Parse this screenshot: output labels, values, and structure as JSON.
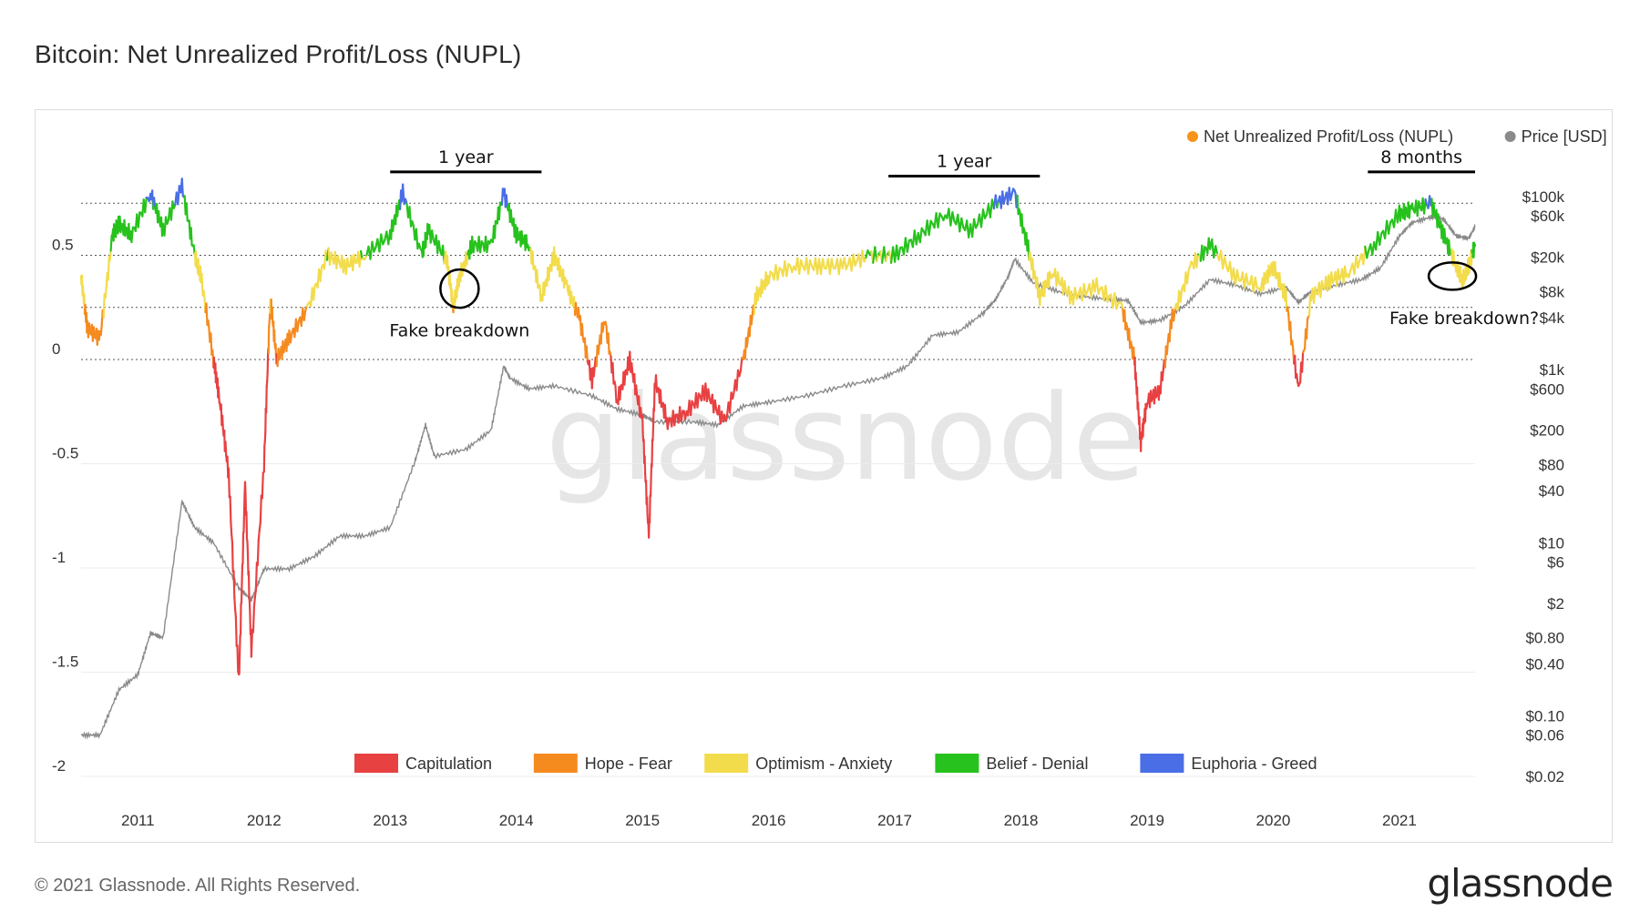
{
  "title": "Bitcoin: Net Unrealized Profit/Loss (NUPL)",
  "footer": {
    "copyright": "© 2021 Glassnode. All Rights Reserved.",
    "logo": "glassnode"
  },
  "watermark": "glassnode",
  "colors": {
    "capitulation": "#e84142",
    "hope_fear": "#f58a1f",
    "optimism_anxiety": "#f2dc4c",
    "belief_denial": "#27c21d",
    "euphoria_greed": "#4a6ee6",
    "price": "#8a8a8a",
    "nupl_legend": "#f7931a"
  },
  "chart_data": {
    "type": "line",
    "title": "Bitcoin: Net Unrealized Profit/Loss (NUPL)",
    "x_ticks": [
      "2011",
      "2012",
      "2013",
      "2014",
      "2015",
      "2016",
      "2017",
      "2018",
      "2019",
      "2020",
      "2021"
    ],
    "x_range": [
      2010.55,
      2021.6
    ],
    "left_axis": {
      "ticks": [
        "0.5",
        "0",
        "-0.5",
        "-1",
        "-1.5",
        "-2"
      ],
      "ylim": [
        -2,
        1
      ]
    },
    "right_axis": {
      "scale": "log",
      "ticks": [
        "$100k",
        "$60k",
        "$20k",
        "$8k",
        "$4k",
        "$1k",
        "$600",
        "$200",
        "$80",
        "$40",
        "$10",
        "$6",
        "$2",
        "$0.80",
        "$0.40",
        "$0.10",
        "$0.06",
        "$0.02"
      ]
    },
    "series": [
      {
        "name": "Net Unrealized Profit/Loss (NUPL)",
        "x": [
          2010.55,
          2010.6,
          2010.7,
          2010.8,
          2010.85,
          2010.95,
          2011.1,
          2011.2,
          2011.35,
          2011.45,
          2011.5,
          2011.6,
          2011.65,
          2011.72,
          2011.8,
          2011.85,
          2011.9,
          2012.0,
          2012.05,
          2012.1,
          2012.2,
          2012.35,
          2012.5,
          2012.65,
          2012.8,
          2013.0,
          2013.1,
          2013.25,
          2013.3,
          2013.45,
          2013.5,
          2013.55,
          2013.65,
          2013.8,
          2013.9,
          2014.0,
          2014.1,
          2014.2,
          2014.3,
          2014.4,
          2014.5,
          2014.6,
          2014.7,
          2014.8,
          2014.9,
          2015.0,
          2015.05,
          2015.1,
          2015.2,
          2015.35,
          2015.5,
          2015.65,
          2015.8,
          2015.9,
          2016.0,
          2016.2,
          2016.4,
          2016.6,
          2016.8,
          2017.0,
          2017.2,
          2017.4,
          2017.6,
          2017.8,
          2017.95,
          2018.05,
          2018.15,
          2018.25,
          2018.4,
          2018.6,
          2018.8,
          2018.9,
          2018.95,
          2019.0,
          2019.1,
          2019.2,
          2019.35,
          2019.5,
          2019.7,
          2019.9,
          2020.0,
          2020.1,
          2020.2,
          2020.3,
          2020.45,
          2020.6,
          2020.8,
          2021.0,
          2021.1,
          2021.25,
          2021.35,
          2021.45,
          2021.5,
          2021.55,
          2021.6
        ],
        "y": [
          0.4,
          0.15,
          0.1,
          0.6,
          0.65,
          0.6,
          0.8,
          0.62,
          0.83,
          0.5,
          0.4,
          0.0,
          -0.2,
          -0.55,
          -1.55,
          -0.6,
          -1.4,
          -0.5,
          0.3,
          0.0,
          0.1,
          0.25,
          0.5,
          0.45,
          0.5,
          0.6,
          0.8,
          0.5,
          0.62,
          0.48,
          0.25,
          0.4,
          0.55,
          0.55,
          0.8,
          0.6,
          0.55,
          0.3,
          0.5,
          0.35,
          0.2,
          -0.1,
          0.2,
          -0.2,
          0.0,
          -0.3,
          -0.85,
          -0.1,
          -0.3,
          -0.25,
          -0.15,
          -0.3,
          0.0,
          0.3,
          0.4,
          0.45,
          0.45,
          0.45,
          0.5,
          0.5,
          0.6,
          0.7,
          0.62,
          0.75,
          0.8,
          0.55,
          0.3,
          0.42,
          0.3,
          0.35,
          0.25,
          0.0,
          -0.4,
          -0.2,
          -0.15,
          0.2,
          0.45,
          0.55,
          0.4,
          0.35,
          0.45,
          0.3,
          -0.15,
          0.3,
          0.38,
          0.42,
          0.55,
          0.7,
          0.72,
          0.75,
          0.6,
          0.45,
          0.38,
          0.45,
          0.55
        ]
      },
      {
        "name": "Price [USD]",
        "x": [
          2010.55,
          2010.7,
          2010.85,
          2011.0,
          2011.1,
          2011.2,
          2011.35,
          2011.45,
          2011.6,
          2011.8,
          2011.9,
          2012.0,
          2012.2,
          2012.4,
          2012.6,
          2012.8,
          2013.0,
          2013.2,
          2013.28,
          2013.35,
          2013.6,
          2013.8,
          2013.9,
          2013.95,
          2014.1,
          2014.3,
          2014.6,
          2014.8,
          2015.0,
          2015.1,
          2015.4,
          2015.6,
          2015.8,
          2016.0,
          2016.3,
          2016.6,
          2016.9,
          2017.1,
          2017.3,
          2017.5,
          2017.7,
          2017.8,
          2017.9,
          2017.95,
          2018.1,
          2018.3,
          2018.5,
          2018.7,
          2018.85,
          2018.95,
          2019.1,
          2019.3,
          2019.5,
          2019.7,
          2019.9,
          2020.1,
          2020.2,
          2020.3,
          2020.5,
          2020.7,
          2020.85,
          2021.0,
          2021.1,
          2021.25,
          2021.35,
          2021.45,
          2021.55,
          2021.6
        ],
        "y": [
          0.06,
          0.06,
          0.2,
          0.3,
          0.9,
          0.8,
          30,
          15,
          10,
          3,
          2.2,
          5,
          5,
          7,
          12,
          12,
          15,
          90,
          230,
          100,
          120,
          200,
          1100,
          800,
          600,
          650,
          500,
          350,
          300,
          250,
          250,
          230,
          380,
          420,
          500,
          650,
          800,
          1100,
          2500,
          2700,
          4500,
          6500,
          12000,
          19000,
          10000,
          8000,
          7000,
          6500,
          6300,
          3500,
          3700,
          5500,
          11000,
          9500,
          7500,
          9000,
          6000,
          8000,
          9500,
          11000,
          15000,
          35000,
          50000,
          58000,
          55000,
          35000,
          33000,
          45000
        ]
      }
    ],
    "zones": [
      {
        "name": "Capitulation",
        "range": [
          -2,
          0
        ]
      },
      {
        "name": "Hope - Fear",
        "range": [
          0,
          0.25
        ]
      },
      {
        "name": "Optimism - Anxiety",
        "range": [
          0.25,
          0.5
        ]
      },
      {
        "name": "Belief - Denial",
        "range": [
          0.5,
          0.75
        ]
      },
      {
        "name": "Euphoria - Greed",
        "range": [
          0.75,
          1
        ]
      }
    ],
    "annotations": [
      {
        "text": "1 year",
        "x_start": 2013.0,
        "x_end": 2014.2,
        "y": 0.9
      },
      {
        "text": "1 year",
        "x_start": 2016.95,
        "x_end": 2018.15,
        "y": 0.88
      },
      {
        "text": "8 months",
        "x_start": 2020.75,
        "x_end": 2021.6,
        "y": 0.9
      },
      {
        "text": "Fake breakdown",
        "x": 2013.55,
        "y": 0.32
      },
      {
        "text": "Fake breakdown?",
        "x": 2021.55,
        "y": 0.38
      }
    ]
  },
  "legend": {
    "top": [
      {
        "label": "Net Unrealized Profit/Loss (NUPL)",
        "color": "#f7931a"
      },
      {
        "label": "Price [USD]",
        "color": "#8a8a8a"
      }
    ],
    "bottom": [
      {
        "label": "Capitulation",
        "color": "#e84142"
      },
      {
        "label": "Hope - Fear",
        "color": "#f58a1f"
      },
      {
        "label": "Optimism - Anxiety",
        "color": "#f2dc4c"
      },
      {
        "label": "Belief - Denial",
        "color": "#27c21d"
      },
      {
        "label": "Euphoria - Greed",
        "color": "#4a6ee6"
      }
    ]
  }
}
